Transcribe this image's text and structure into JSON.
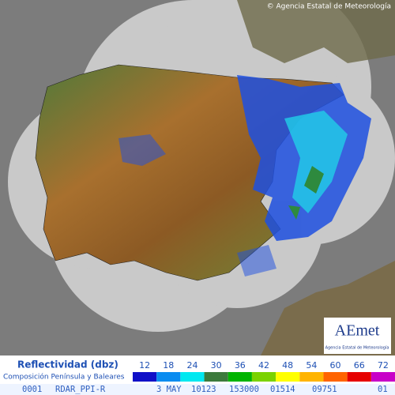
{
  "copyright": "© Agencia Estatal de Meteorología",
  "logo": {
    "name": "AEmet",
    "subtitle": "Agencia Estatal de Meteorología"
  },
  "legend": {
    "title": "Reflectividad (dbz)",
    "subtitle": "Composición Península y Baleares",
    "items": [
      {
        "label": 12,
        "color": "#1010c8"
      },
      {
        "label": 18,
        "color": "#0a8cf0"
      },
      {
        "label": 24,
        "color": "#00e8f0"
      },
      {
        "label": 30,
        "color": "#3c7a3c"
      },
      {
        "label": 36,
        "color": "#00b400"
      },
      {
        "label": 42,
        "color": "#7ad200"
      },
      {
        "label": 48,
        "color": "#ffff00"
      },
      {
        "label": 54,
        "color": "#ffb400"
      },
      {
        "label": 60,
        "color": "#ff6400"
      },
      {
        "label": 66,
        "color": "#e60000"
      },
      {
        "label": 72,
        "color": "#c800c8"
      }
    ]
  },
  "footer": [
    "0001",
    "RDAR_PPI-R",
    "3 MAY",
    "10123",
    "153000",
    "01514",
    "09751",
    "01"
  ]
}
